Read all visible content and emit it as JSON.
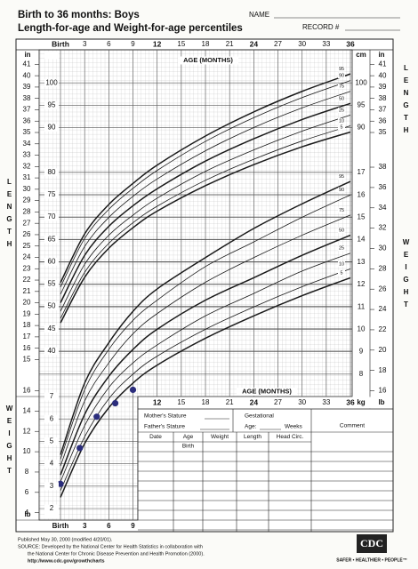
{
  "header": {
    "title": "Birth to 36 months: Boys",
    "subtitle": "Length-for-age and Weight-for-age percentiles",
    "name_label": "NAME",
    "record_label": "RECORD #"
  },
  "chart_data": [
    {
      "type": "line",
      "ylabel": "LENGTH",
      "xlabel": "AGE (MONTHS)",
      "unit": "cm",
      "alt_unit": "in",
      "xlim": [
        0,
        36
      ],
      "xticks": [
        {
          "value": 0,
          "label": "Birth"
        },
        3,
        6,
        9,
        12,
        15,
        18,
        21,
        24,
        27,
        30,
        33,
        36
      ],
      "ylim": [
        36,
        107
      ],
      "yticks": [
        40,
        45,
        50,
        55,
        60,
        65,
        70,
        75,
        80,
        90,
        95,
        100
      ],
      "yticks_right": [
        90,
        95,
        100
      ],
      "yticks_in": [
        {
          "value": 38.1,
          "label": "15"
        },
        {
          "value": 40.64,
          "label": "16"
        },
        {
          "value": 43.18,
          "label": "17"
        },
        {
          "value": 45.72,
          "label": "18"
        },
        {
          "value": 48.26,
          "label": "19"
        },
        {
          "value": 50.8,
          "label": "20"
        },
        {
          "value": 53.34,
          "label": "21"
        },
        {
          "value": 55.88,
          "label": "22"
        },
        {
          "value": 58.42,
          "label": "23"
        },
        {
          "value": 60.96,
          "label": "24"
        },
        {
          "value": 63.5,
          "label": "25"
        },
        {
          "value": 66.04,
          "label": "26"
        },
        {
          "value": 68.58,
          "label": "27"
        },
        {
          "value": 71.12,
          "label": "28"
        },
        {
          "value": 73.66,
          "label": "29"
        },
        {
          "value": 76.2,
          "label": "30"
        },
        {
          "value": 78.74,
          "label": "31"
        },
        {
          "value": 81.28,
          "label": "32"
        },
        {
          "value": 83.82,
          "label": "33"
        },
        {
          "value": 86.36,
          "label": "34"
        },
        {
          "value": 88.9,
          "label": "35"
        },
        {
          "value": 91.44,
          "label": "36"
        },
        {
          "value": 93.98,
          "label": "37"
        },
        {
          "value": 96.52,
          "label": "38"
        },
        {
          "value": 99.06,
          "label": "39"
        },
        {
          "value": 101.6,
          "label": "40"
        },
        {
          "value": 104.14,
          "label": "41"
        }
      ],
      "yticks_in_right": [
        {
          "value": 88.9,
          "label": "35"
        },
        {
          "value": 91.44,
          "label": "36"
        },
        {
          "value": 93.98,
          "label": "37"
        },
        {
          "value": 96.52,
          "label": "38"
        },
        {
          "value": 99.06,
          "label": "39"
        },
        {
          "value": 101.6,
          "label": "40"
        },
        {
          "value": 104.14,
          "label": "41"
        }
      ],
      "x": [
        0,
        3,
        6,
        9,
        12,
        18,
        24,
        30,
        36
      ],
      "series": [
        {
          "name": "95",
          "color": "#1a1a1a",
          "values": [
            55.3,
            66.2,
            72.8,
            77.5,
            81.6,
            88.1,
            93.5,
            98.1,
            102.0
          ]
        },
        {
          "name": "90",
          "color": "#1a1a1a",
          "values": [
            54.3,
            65.2,
            71.7,
            76.4,
            80.4,
            86.9,
            92.2,
            96.7,
            100.5
          ]
        },
        {
          "name": "75",
          "color": "#1a1a1a",
          "values": [
            52.7,
            63.4,
            69.9,
            74.6,
            78.5,
            84.8,
            90.0,
            94.4,
            98.1
          ]
        },
        {
          "name": "50",
          "color": "#1a1a1a",
          "values": [
            50.8,
            61.4,
            67.9,
            72.5,
            76.3,
            82.5,
            87.5,
            91.8,
            95.4
          ]
        },
        {
          "name": "25",
          "color": "#1a1a1a",
          "values": [
            48.9,
            59.4,
            65.9,
            70.4,
            74.2,
            80.2,
            85.0,
            89.2,
            92.8
          ]
        },
        {
          "name": "10",
          "color": "#1a1a1a",
          "values": [
            47.3,
            57.6,
            64.1,
            68.7,
            72.4,
            78.2,
            82.9,
            87.0,
            90.4
          ]
        },
        {
          "name": "5",
          "color": "#1a1a1a",
          "values": [
            46.3,
            56.5,
            63.0,
            67.6,
            71.3,
            77.0,
            81.7,
            85.7,
            89.0
          ]
        }
      ]
    },
    {
      "type": "line",
      "ylabel": "WEIGHT",
      "xlabel": "AGE (MONTHS)",
      "unit": "kg",
      "alt_unit": "lb",
      "xlim": [
        0,
        36
      ],
      "xticks": [
        12,
        15,
        18,
        21,
        24,
        27,
        30,
        33,
        36
      ],
      "xticks_bottom": [
        {
          "value": 0,
          "label": "Birth"
        },
        3,
        6,
        9
      ],
      "ylim": [
        1.5,
        17.5
      ],
      "yticks": [
        8,
        9,
        10,
        11,
        12,
        13,
        14,
        15,
        16,
        17
      ],
      "yticks_left": [
        2,
        3,
        4,
        5,
        6,
        7
      ],
      "lbticks": [
        {
          "value": 7.257,
          "label": "16"
        },
        {
          "value": 8.165,
          "label": "18"
        },
        {
          "value": 9.072,
          "label": "20"
        },
        {
          "value": 9.979,
          "label": "22"
        },
        {
          "value": 10.886,
          "label": "24"
        },
        {
          "value": 11.793,
          "label": "26"
        },
        {
          "value": 12.701,
          "label": "28"
        },
        {
          "value": 13.608,
          "label": "30"
        },
        {
          "value": 14.515,
          "label": "32"
        },
        {
          "value": 15.422,
          "label": "34"
        },
        {
          "value": 16.329,
          "label": "36"
        },
        {
          "value": 17.237,
          "label": "38"
        }
      ],
      "lbticks_left": [
        {
          "value": 1.814,
          "label": "4"
        },
        {
          "value": 2.722,
          "label": "6"
        },
        {
          "value": 3.629,
          "label": "8"
        },
        {
          "value": 4.536,
          "label": "10"
        },
        {
          "value": 5.443,
          "label": "12"
        },
        {
          "value": 6.35,
          "label": "14"
        },
        {
          "value": 7.257,
          "label": "16"
        }
      ],
      "x": [
        0,
        3,
        6,
        9,
        12,
        18,
        24,
        30,
        36
      ],
      "series": [
        {
          "name": "95",
          "color": "#1a1a1a",
          "values": [
            4.4,
            7.6,
            9.4,
            10.8,
            11.8,
            13.2,
            14.5,
            15.6,
            16.6
          ]
        },
        {
          "name": "90",
          "color": "#1a1a1a",
          "values": [
            4.2,
            7.3,
            9.1,
            10.4,
            11.3,
            12.8,
            13.9,
            15.0,
            16.0
          ]
        },
        {
          "name": "75",
          "color": "#1a1a1a",
          "values": [
            3.9,
            6.8,
            8.5,
            9.8,
            10.7,
            12.1,
            13.2,
            14.2,
            15.1
          ]
        },
        {
          "name": "50",
          "color": "#1a1a1a",
          "values": [
            3.5,
            6.2,
            7.9,
            9.1,
            10.0,
            11.3,
            12.3,
            13.3,
            14.2
          ]
        },
        {
          "name": "25",
          "color": "#1a1a1a",
          "values": [
            3.2,
            5.7,
            7.4,
            8.5,
            9.3,
            10.6,
            11.6,
            12.6,
            13.4
          ]
        },
        {
          "name": "10",
          "color": "#1a1a1a",
          "values": [
            2.8,
            5.2,
            6.9,
            8.0,
            8.8,
            10.0,
            11.0,
            11.9,
            12.7
          ]
        },
        {
          "name": "5",
          "color": "#1a1a1a",
          "values": [
            2.5,
            4.9,
            6.5,
            7.6,
            8.4,
            9.6,
            10.6,
            11.5,
            12.3
          ]
        }
      ],
      "measurements": {
        "color": "#2b2d7c",
        "x": [
          0,
          2.4,
          4.5,
          6.8,
          9.0
        ],
        "values": [
          3.1,
          4.7,
          6.1,
          6.7,
          7.3
        ]
      }
    }
  ],
  "record_form": {
    "mothers_stature": "Mother's Stature",
    "fathers_stature": "Father's Stature",
    "gestational": "Gestational",
    "age": "Age:",
    "weeks": "Weeks",
    "comment": "Comment",
    "columns": [
      "Date",
      "Age",
      "Weight",
      "Length",
      "Head Circ."
    ],
    "first_age": "Birth"
  },
  "footer": {
    "published": "Published May 30, 2000 (modified 4/20/01).",
    "source_1": "SOURCE: Developed by the National Center for Health Statistics in collaboration with",
    "source_2": "the National Center for Chronic Disease Prevention and Health Promotion (2000).",
    "url": "http://www.cdc.gov/growthcharts",
    "logo": "CDC",
    "tagline": "SAFER • HEALTHIER • PEOPLE™"
  }
}
